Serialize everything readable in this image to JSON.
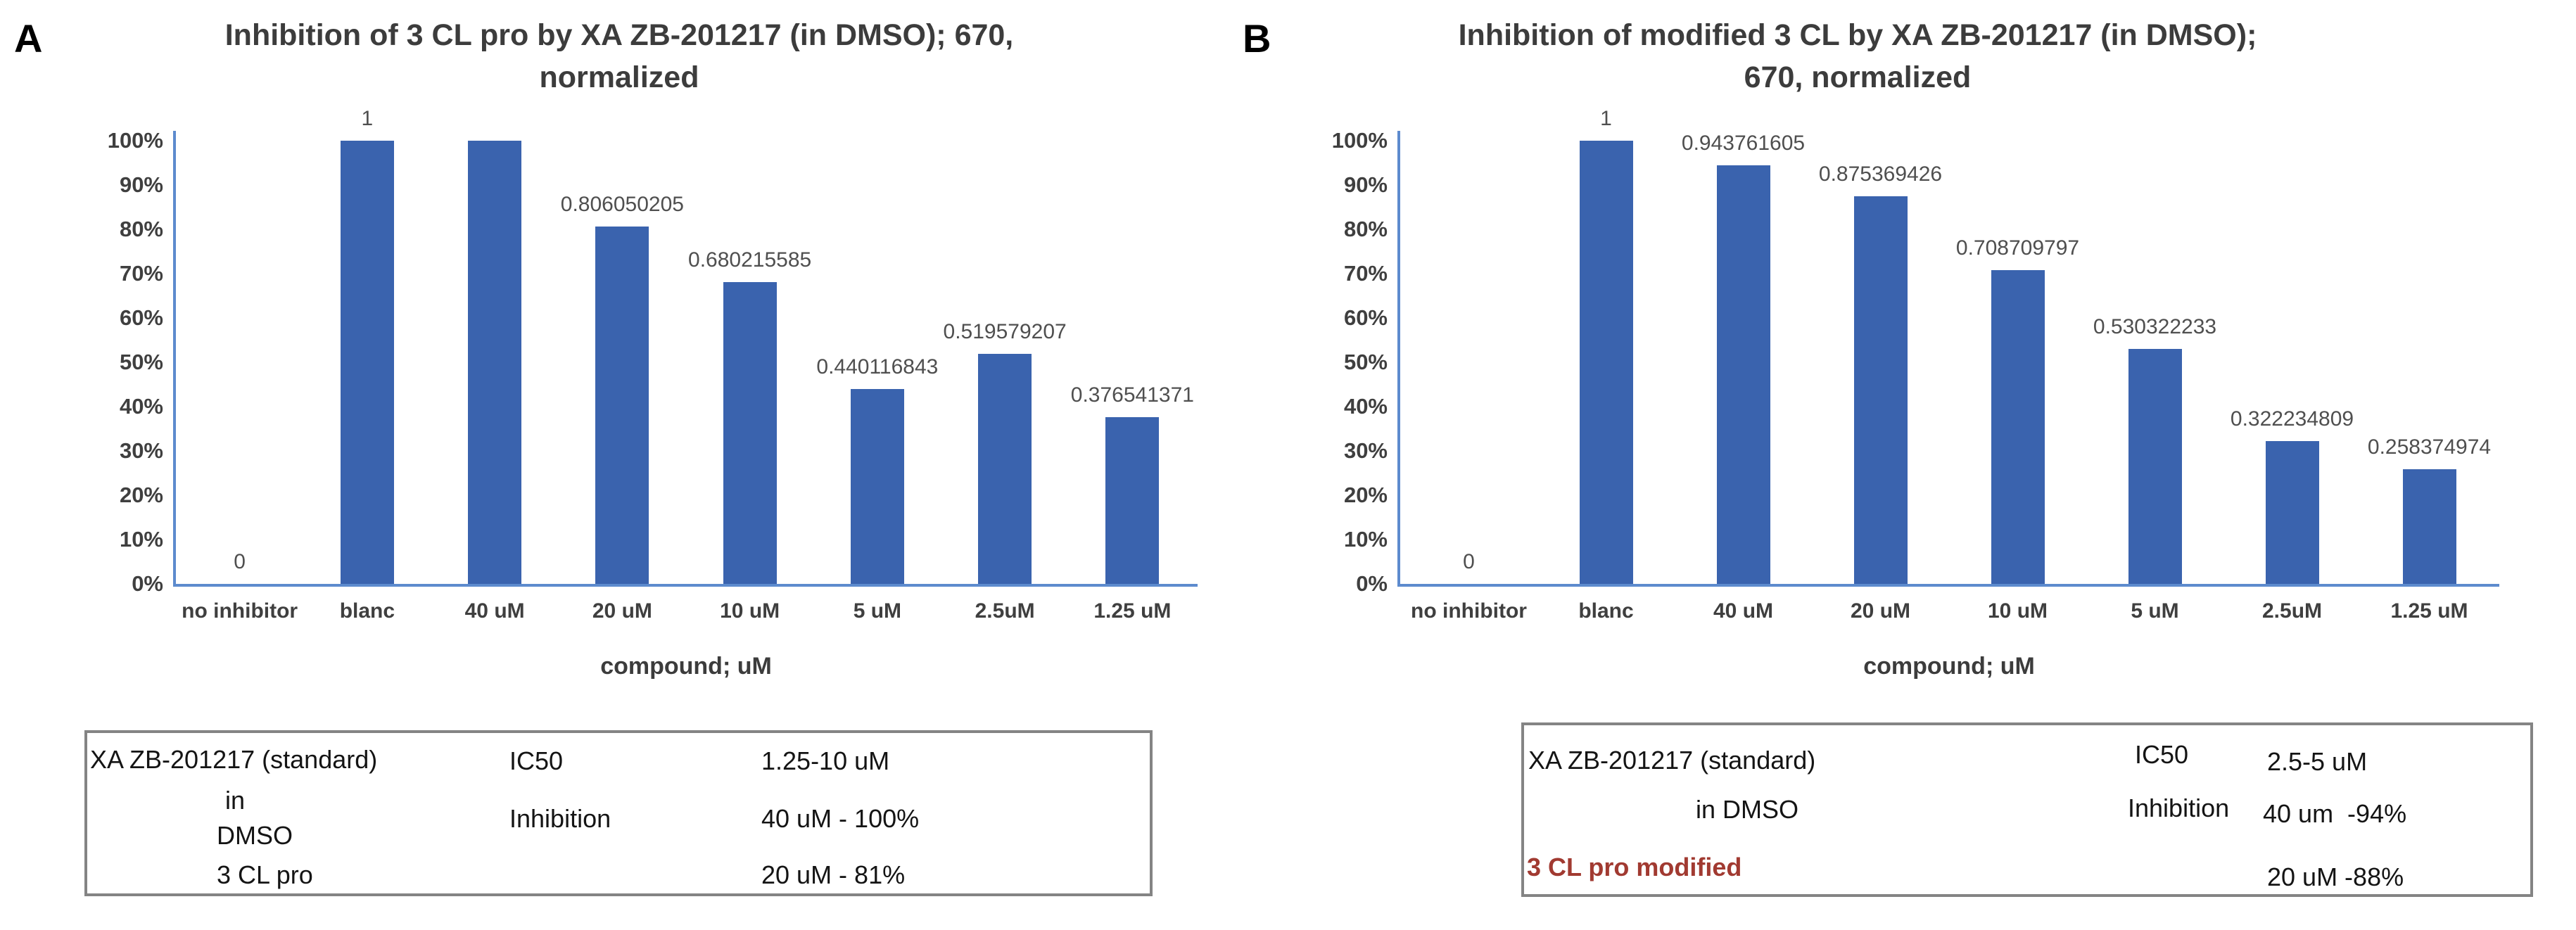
{
  "page": {
    "background": "#ffffff"
  },
  "panels": [
    {
      "label": "A",
      "table": {
        "sample_line1": "XA ZB-201217 (standard)",
        "sample_line2": "in",
        "sample_line3": "DMSO",
        "sample_line4": "3 CL pro",
        "ic50_label": "IC50",
        "ic50_value": "1.25-10 uM",
        "inhibition_label": "Inhibition",
        "inhibition_value1": "40 uM - 100%",
        "inhibition_value2": "20 uM - 81%"
      }
    },
    {
      "label": "B",
      "table": {
        "sample_line1": "XA ZB-201217 (standard)",
        "sample_line2": "in DMSO",
        "sample_line3": "3 CL pro modified",
        "sample_line3_color": "#a13a31",
        "ic50_label": "IC50",
        "ic50_value": "2.5-5 uM",
        "inhibition_label": "Inhibition",
        "inhibition_value1": "40 um  -94%",
        "inhibition_value2": "20 uM -88%"
      }
    }
  ],
  "chart_data": [
    {
      "type": "bar",
      "title_lines": [
        "Inhibition of 3 CL pro by XA ZB-201217 (in DMSO); 670,",
        "normalized"
      ],
      "categories": [
        "no inhibitor",
        "blanc",
        "40 uM",
        "20 uM",
        "10 uM",
        "5 uM",
        "2.5uM",
        "1.25 uM"
      ],
      "values": [
        0,
        1,
        1,
        0.806050205,
        0.680215585,
        0.440116843,
        0.519579207,
        0.376541371
      ],
      "bar_labels": [
        "0",
        "1",
        "",
        "0.806050205",
        "0.680215585",
        "0.440116843",
        "0.519579207",
        "0.376541371"
      ],
      "xlabel": "compound; uM",
      "ylabel": "",
      "ylim": [
        0,
        1
      ],
      "ytick_labels": [
        "100%",
        "90%",
        "80%",
        "70%",
        "60%",
        "50%",
        "40%",
        "30%",
        "20%",
        "10%",
        "0%"
      ],
      "grid": false,
      "legend": false,
      "bar_color": "#3a63ae",
      "axis_color": "#5d8bce"
    },
    {
      "type": "bar",
      "title_lines": [
        "Inhibition of modified 3 CL by XA ZB-201217 (in DMSO);",
        "670, normalized"
      ],
      "categories": [
        "no inhibitor",
        "blanc",
        "40 uM",
        "20 uM",
        "10 uM",
        "5 uM",
        "2.5uM",
        "1.25 uM"
      ],
      "values": [
        0,
        1,
        0.943761605,
        0.875369426,
        0.708709797,
        0.530322233,
        0.322234809,
        0.258374974
      ],
      "bar_labels": [
        "0",
        "1",
        "0.943761605",
        "0.875369426",
        "0.708709797",
        "0.530322233",
        "0.322234809",
        "0.258374974"
      ],
      "xlabel": "compound; uM",
      "ylabel": "",
      "ylim": [
        0,
        1
      ],
      "ytick_labels": [
        "100%",
        "90%",
        "80%",
        "70%",
        "60%",
        "50%",
        "40%",
        "30%",
        "20%",
        "10%",
        "0%"
      ],
      "grid": false,
      "legend": false,
      "bar_color": "#3a63ae",
      "axis_color": "#5d8bce"
    }
  ]
}
